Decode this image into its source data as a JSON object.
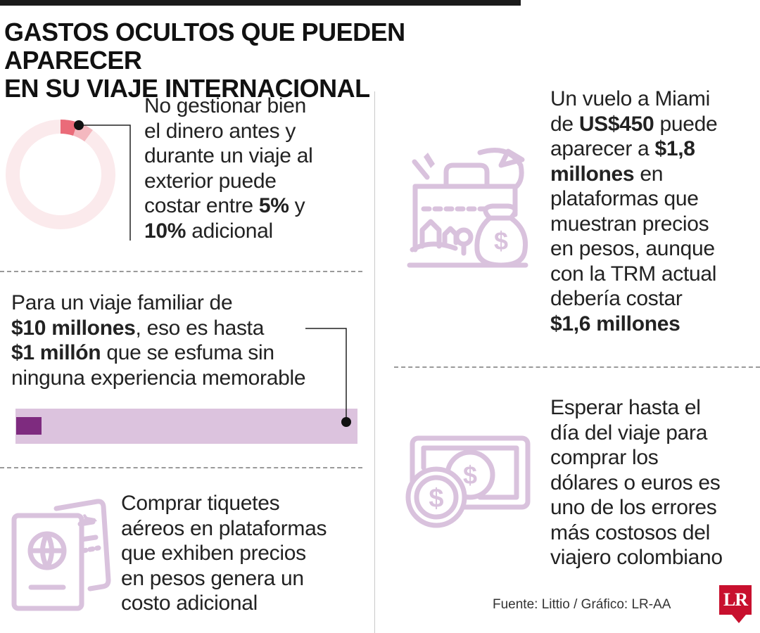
{
  "header": {
    "title_line1": "GASTOS OCULTOS QUE PUEDEN APARECER",
    "title_line2": "EN SU VIAJE INTERNACIONAL"
  },
  "block1": {
    "lines": [
      "No gestionar bien",
      "el dinero antes y",
      "durante un viaje al",
      "exterior puede"
    ],
    "line5_pre": "costar entre ",
    "line5_bold": "5%",
    "line5_post": " y",
    "line6_bold": "10%",
    "line6_post": " adicional",
    "donut": {
      "low_percent": 5,
      "high_percent": 10
    }
  },
  "block2": {
    "line1": "Para un viaje familiar de",
    "line2_bold": "$10 millones",
    "line2_post": ", eso es hasta",
    "line3_bold": "$1 millón",
    "line3_post": " que se esfuma sin",
    "line4": "ninguna experiencia memorable",
    "bar": {
      "part_millones": 1,
      "total_millones": 10
    }
  },
  "block3": {
    "lines": [
      "Comprar tiquetes",
      "aéreos en plataformas",
      "que exhiben precios",
      "en pesos genera un",
      "costo adicional"
    ]
  },
  "block4": {
    "line1": "Un vuelo a Miami",
    "line2_pre": "de ",
    "line2_bold": "US$450",
    "line2_post": " puede",
    "line3_pre": "aparecer a ",
    "line3_bold": "$1,8",
    "line4_bold": "millones",
    "line4_post": " en",
    "lines_rest": [
      "plataformas que",
      "muestran precios",
      "en pesos, aunque",
      "con la TRM actual",
      "debería costar"
    ],
    "last_bold": "$1,6 millones"
  },
  "block5": {
    "lines": [
      "Esperar hasta el",
      "día del viaje para",
      "comprar los",
      "dólares o euros es",
      "uno de los errores",
      "más costosos del",
      "viajero colombiano"
    ]
  },
  "footer": {
    "source": "Fuente: Littio / Gráfico: LR-AA",
    "logo": "LR"
  },
  "icons": [
    "donut-chart-icon",
    "luggage-money-icon",
    "passport-ticket-icon",
    "cash-coins-icon"
  ],
  "colors": {
    "accent_light": "#d9c2dd",
    "accent_dark": "#7e2b7f",
    "donut_track": "#fbeaec",
    "donut_low": "#ea6b79",
    "donut_high": "#f4b8bf",
    "brand_red": "#c8102e"
  }
}
